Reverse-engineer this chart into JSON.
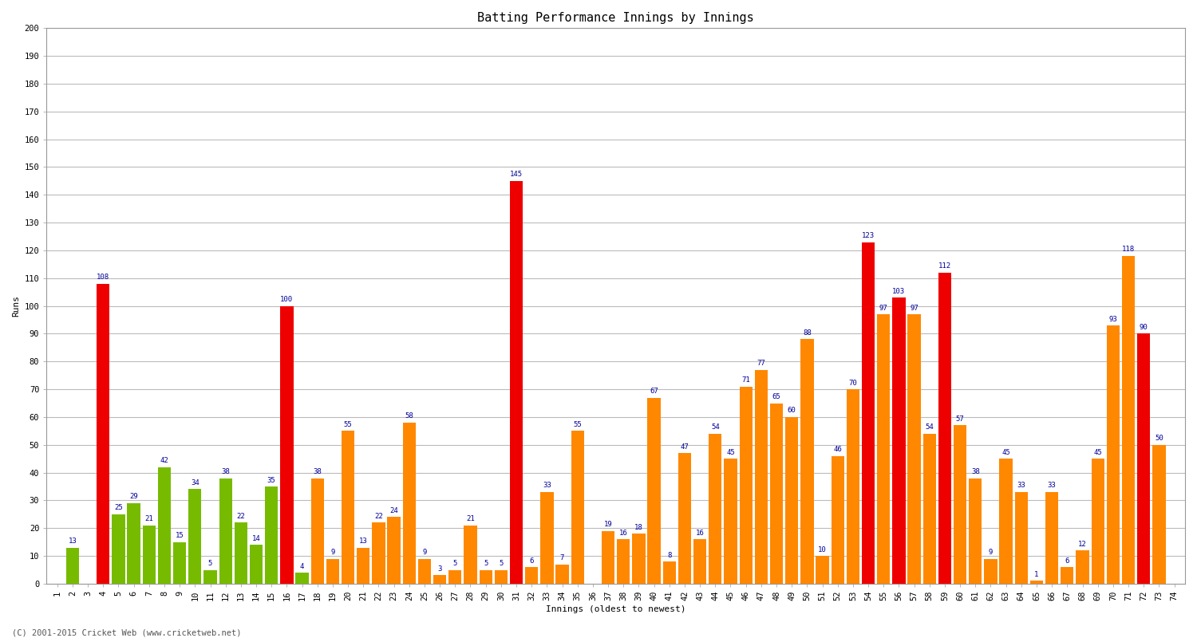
{
  "title": "Batting Performance Innings by Innings",
  "xlabel": "Innings (oldest to newest)",
  "ylabel": "Runs",
  "footer": "(C) 2001-2015 Cricket Web (www.cricketweb.net)",
  "ylim": [
    0,
    200
  ],
  "yticks": [
    0,
    10,
    20,
    30,
    40,
    50,
    60,
    70,
    80,
    90,
    100,
    110,
    120,
    130,
    140,
    150,
    160,
    170,
    180,
    190,
    200
  ],
  "innings": [
    1,
    2,
    3,
    4,
    5,
    6,
    7,
    8,
    9,
    10,
    11,
    12,
    13,
    14,
    15,
    16,
    17,
    18,
    19,
    20,
    21,
    22,
    23,
    24,
    25,
    26,
    27,
    28,
    29,
    30,
    31,
    32,
    33,
    34,
    35,
    36,
    37,
    38,
    39,
    40,
    41,
    42,
    43,
    44,
    45,
    46,
    47,
    48,
    49,
    50,
    51,
    52,
    53,
    54,
    55,
    56,
    57,
    58,
    59,
    60,
    61,
    62,
    63,
    64,
    65,
    66,
    67,
    68,
    69,
    70,
    71,
    72,
    73,
    74
  ],
  "values": [
    0,
    13,
    0,
    108,
    25,
    29,
    21,
    42,
    15,
    34,
    5,
    38,
    22,
    14,
    35,
    100,
    4,
    38,
    9,
    55,
    13,
    22,
    24,
    58,
    9,
    3,
    5,
    21,
    5,
    5,
    145,
    6,
    33,
    7,
    55,
    0,
    19,
    16,
    18,
    67,
    8,
    47,
    16,
    54,
    45,
    71,
    77,
    65,
    60,
    88,
    10,
    46,
    70,
    123,
    97,
    103,
    97,
    54,
    112,
    57,
    38,
    9,
    45,
    33,
    1,
    33,
    6,
    12,
    45,
    93,
    118,
    90,
    50,
    0
  ],
  "colors": [
    "#77bb00",
    "#77bb00",
    "#77bb00",
    "#ee0000",
    "#77bb00",
    "#77bb00",
    "#77bb00",
    "#77bb00",
    "#77bb00",
    "#77bb00",
    "#77bb00",
    "#77bb00",
    "#77bb00",
    "#77bb00",
    "#77bb00",
    "#ee0000",
    "#77bb00",
    "#ff8800",
    "#ff8800",
    "#ff8800",
    "#ff8800",
    "#ff8800",
    "#ff8800",
    "#ff8800",
    "#ff8800",
    "#ff8800",
    "#ff8800",
    "#ff8800",
    "#ff8800",
    "#ff8800",
    "#ee0000",
    "#ff8800",
    "#ff8800",
    "#ff8800",
    "#ff8800",
    "#ff8800",
    "#ff8800",
    "#ff8800",
    "#ff8800",
    "#ff8800",
    "#ff8800",
    "#ff8800",
    "#ff8800",
    "#ff8800",
    "#ff8800",
    "#ff8800",
    "#ff8800",
    "#ff8800",
    "#ff8800",
    "#ff8800",
    "#ff8800",
    "#ff8800",
    "#ff8800",
    "#ee0000",
    "#ff8800",
    "#ee0000",
    "#ff8800",
    "#ff8800",
    "#ee0000",
    "#ff8800",
    "#ff8800",
    "#ff8800",
    "#ff8800",
    "#ff8800",
    "#ff8800",
    "#ff8800",
    "#ff8800",
    "#ff8800",
    "#ff8800",
    "#ff8800",
    "#ff8800",
    "#ee0000",
    "#ff8800",
    "#ff8800"
  ],
  "label_color": "#000099",
  "background_color": "#ffffff",
  "grid_color": "#bbbbbb",
  "bar_width": 0.85,
  "title_fontsize": 11,
  "axis_fontsize": 8,
  "tick_fontsize": 7.5,
  "label_fontsize": 6.5
}
